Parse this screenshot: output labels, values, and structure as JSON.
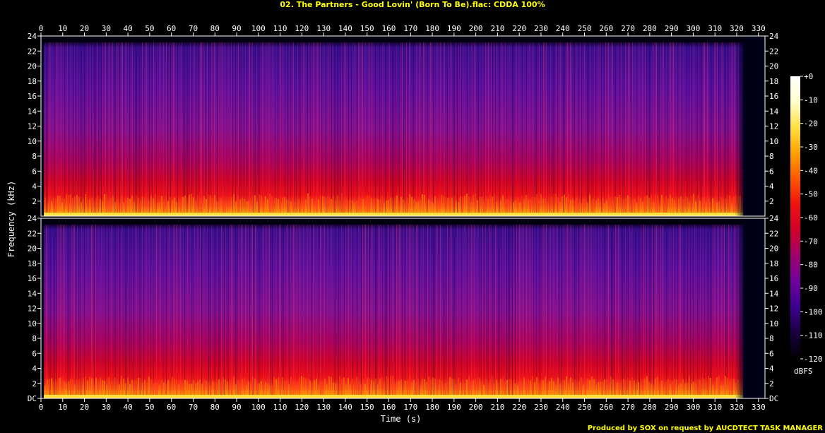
{
  "chart_data": {
    "type": "heatmap",
    "title": "02. The Partners - Good Lovin' (Born To Be).flac: CDDA 100%",
    "xlabel": "Time (s)",
    "ylabel": "Frequency (kHz)",
    "xlim": [
      0,
      333
    ],
    "ylim": [
      0,
      24
    ],
    "x_ticks": [
      "0",
      "10",
      "20",
      "30",
      "40",
      "50",
      "60",
      "70",
      "80",
      "90",
      "100",
      "110",
      "120",
      "130",
      "140",
      "150",
      "160",
      "170",
      "180",
      "190",
      "200",
      "210",
      "220",
      "230",
      "240",
      "250",
      "260",
      "270",
      "280",
      "290",
      "300",
      "310",
      "320",
      "330"
    ],
    "y_ticks_top": [
      "24",
      "22",
      "20",
      "18",
      "16",
      "14",
      "12",
      "10",
      "8",
      "6",
      "4",
      "2"
    ],
    "y_ticks_bottom": [
      "24",
      "22",
      "20",
      "18",
      "16",
      "14",
      "12",
      "10",
      "8",
      "6",
      "4",
      "2",
      "DC"
    ],
    "channels": 2,
    "duration_s": 323,
    "colorbar": {
      "label": "dBFS",
      "ticks": [
        "+0",
        "-10",
        "-20",
        "-30",
        "-40",
        "-50",
        "-60",
        "-70",
        "-80",
        "-90",
        "-100",
        "-110",
        "-120"
      ],
      "range": [
        -120,
        0
      ],
      "colors": [
        "#000000",
        "#1a0040",
        "#3c0090",
        "#7000a0",
        "#a00070",
        "#d0002a",
        "#f01010",
        "#ff5500",
        "#ffa000",
        "#ffe040",
        "#ffffcc",
        "#ffffff"
      ]
    }
  },
  "footer": "Produced by SOX on request by AUCDTECT TASK MANAGER"
}
